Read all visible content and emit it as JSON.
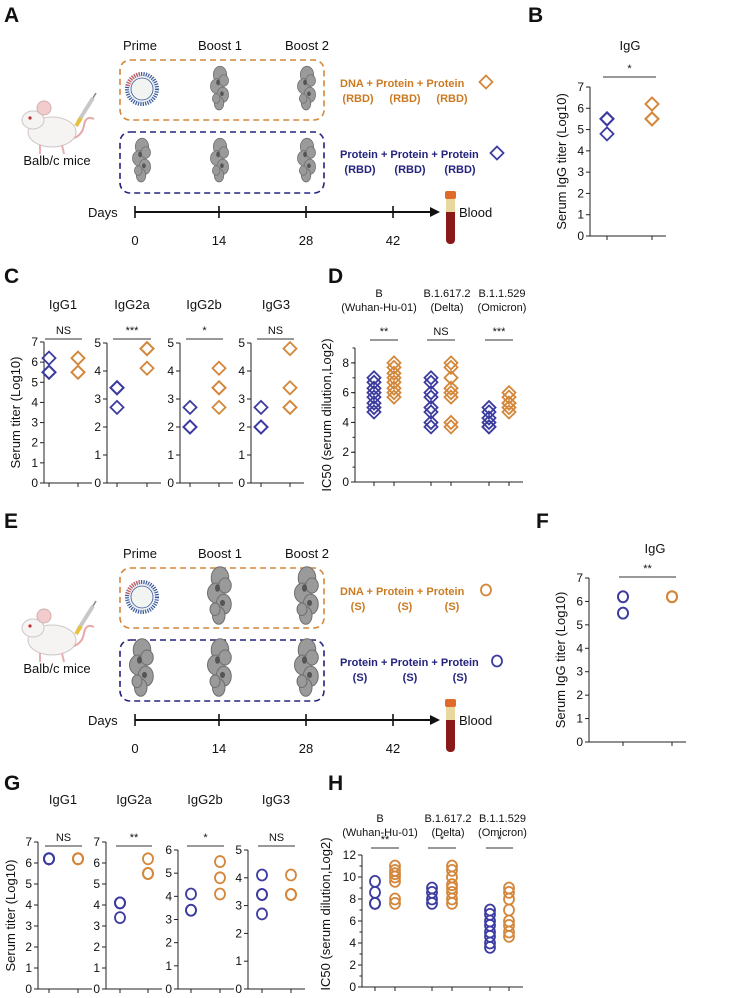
{
  "panel_labels": {
    "A": "A",
    "B": "B",
    "C": "C",
    "D": "D",
    "E": "E",
    "F": "F",
    "G": "G",
    "H": "H"
  },
  "colors": {
    "protein_group": "#3c3ca0",
    "dna_group": "#d4873a",
    "orange_box": "#d4873a",
    "blue_box": "#23237e"
  },
  "schematic_A": {
    "prime": "Prime",
    "boost1": "Boost 1",
    "boost2": "Boost 2",
    "mouse_label": "Balb/c mice",
    "days_label": "Days",
    "days": [
      "0",
      "14",
      "28",
      "42"
    ],
    "blood": "Blood",
    "group1": {
      "line1": "DNA + Protein + Protein",
      "antigens": [
        "(RBD)",
        "(RBD)",
        "(RBD)"
      ],
      "marker": "diamond"
    },
    "group2": {
      "line1": "Protein + Protein + Protein",
      "antigens": [
        "(RBD)",
        "(RBD)",
        "(RBD)"
      ],
      "marker": "diamond"
    }
  },
  "schematic_E": {
    "prime": "Prime",
    "boost1": "Boost 1",
    "boost2": "Boost 2",
    "mouse_label": "Balb/c mice",
    "days_label": "Days",
    "days": [
      "0",
      "14",
      "28",
      "42"
    ],
    "blood": "Blood",
    "group1": {
      "line1": "DNA + Protein + Protein",
      "antigens": [
        "(S)",
        "(S)",
        "(S)"
      ],
      "marker": "circle"
    },
    "group2": {
      "line1": "Protein + Protein + Protein",
      "antigens": [
        "(S)",
        "(S)",
        "(S)"
      ],
      "marker": "circle"
    }
  },
  "chart_data": [
    {
      "panel": "B",
      "type": "scatter",
      "title": "IgG",
      "ylabel": "Serum IgG titer (Log10)",
      "ylim": [
        0,
        7
      ],
      "yticks": [
        "0",
        "1",
        "2",
        "3",
        "4",
        "5",
        "6",
        "7"
      ],
      "marker": "diamond",
      "groups": [
        {
          "label": [],
          "significance": "*",
          "protein": [
            5.5,
            5.5,
            5.5,
            5.5,
            4.8
          ],
          "dna": [
            6.2,
            5.5,
            5.5,
            5.5,
            6.2
          ]
        }
      ]
    },
    {
      "panel": "C",
      "type": "scatter",
      "title": "IgG1",
      "ylabel": "Serum titer (Log10)",
      "ylim": [
        0,
        7
      ],
      "yticks": [
        "0",
        "1",
        "2",
        "3",
        "4",
        "5",
        "6",
        "7"
      ],
      "marker": "diamond",
      "groups": [
        {
          "label": [],
          "significance": "NS",
          "protein": [
            6.2,
            5.5,
            5.5,
            5.5
          ],
          "dna": [
            6.2,
            5.5,
            5.5,
            6.2
          ]
        }
      ]
    },
    {
      "panel": "C",
      "type": "scatter",
      "title": "IgG2a",
      "ylabel": "",
      "ylim": [
        0,
        5
      ],
      "yticks": [
        "0",
        "1",
        "2",
        "3",
        "4",
        "5"
      ],
      "marker": "diamond",
      "groups": [
        {
          "label": [],
          "significance": "***",
          "protein": [
            3.4,
            3.4,
            2.7,
            3.4
          ],
          "dna": [
            4.8,
            4.8,
            4.1,
            4.8
          ]
        }
      ]
    },
    {
      "panel": "C",
      "type": "scatter",
      "title": "IgG2b",
      "ylabel": "",
      "ylim": [
        0,
        5
      ],
      "yticks": [
        "0",
        "1",
        "2",
        "3",
        "4",
        "5"
      ],
      "marker": "diamond",
      "groups": [
        {
          "label": [],
          "significance": "*",
          "protein": [
            2.7,
            2.0,
            2.0,
            2.0
          ],
          "dna": [
            4.1,
            3.4,
            3.4,
            2.7
          ]
        }
      ]
    },
    {
      "panel": "C",
      "type": "scatter",
      "title": "IgG3",
      "ylabel": "",
      "ylim": [
        0,
        5
      ],
      "yticks": [
        "0",
        "1",
        "2",
        "3",
        "4",
        "5"
      ],
      "marker": "diamond",
      "groups": [
        {
          "label": [],
          "significance": "NS",
          "protein": [
            2.7,
            2.0,
            2.0,
            2.0
          ],
          "dna": [
            4.8,
            3.4,
            2.7,
            2.7
          ]
        }
      ]
    },
    {
      "panel": "D",
      "type": "scatter",
      "title": "",
      "ylabel": "IC50 (serum dilution,Log2)",
      "ylim": [
        0,
        9
      ],
      "yticks": [
        "0",
        "2",
        "4",
        "6",
        "8"
      ],
      "ytick_values": [
        0,
        2,
        4,
        6,
        8
      ],
      "minor_step": 1,
      "marker": "diamond",
      "groups": [
        {
          "label": [
            "B",
            "(Wuhan-Hu-01)"
          ],
          "significance": "**",
          "protein": [
            4.7,
            5.0,
            5.3,
            5.7,
            6.0,
            6.3,
            6.7,
            7.0
          ],
          "dna": [
            5.7,
            6.0,
            6.3,
            6.7,
            7.0,
            7.3,
            7.7,
            8.0
          ]
        },
        {
          "label": [
            "B.1.617.2",
            "(Delta)"
          ],
          "significance": "NS",
          "protein": [
            3.7,
            4.0,
            4.7,
            5.0,
            5.7,
            6.0,
            6.7,
            7.0
          ],
          "dna": [
            3.7,
            4.0,
            5.7,
            6.0,
            6.3,
            7.0,
            7.7,
            8.0
          ]
        },
        {
          "label": [
            "B.1.1.529",
            "(Omicron)"
          ],
          "significance": "***",
          "protein": [
            3.7,
            3.7,
            4.0,
            4.3,
            4.7,
            5.0
          ],
          "dna": [
            4.7,
            5.0,
            5.3,
            5.3,
            5.7,
            6.0
          ]
        }
      ]
    },
    {
      "panel": "F",
      "type": "scatter",
      "title": "IgG",
      "ylabel": "Serum IgG titer (Log10)",
      "ylim": [
        0,
        7
      ],
      "yticks": [
        "0",
        "1",
        "2",
        "3",
        "4",
        "5",
        "6",
        "7"
      ],
      "marker": "circle",
      "groups": [
        {
          "label": [],
          "significance": "**",
          "protein": [
            6.2,
            6.2,
            5.5,
            5.5
          ],
          "dna": [
            6.2,
            6.2,
            6.2,
            6.2,
            6.2
          ]
        }
      ]
    },
    {
      "panel": "G",
      "type": "scatter",
      "title": "IgG1",
      "ylabel": "Serum titer (Log10)",
      "ylim": [
        0,
        7
      ],
      "yticks": [
        "0",
        "1",
        "2",
        "3",
        "4",
        "5",
        "6",
        "7"
      ],
      "marker": "circle",
      "groups": [
        {
          "label": [],
          "significance": "NS",
          "protein": [
            6.2,
            6.2,
            6.2,
            6.2,
            6.2
          ],
          "dna": [
            6.2,
            6.2,
            6.2,
            6.2,
            6.2
          ]
        }
      ]
    },
    {
      "panel": "G",
      "type": "scatter",
      "title": "IgG2a",
      "ylabel": "",
      "ylim": [
        0,
        7
      ],
      "yticks": [
        "0",
        "1",
        "2",
        "3",
        "4",
        "5",
        "6",
        "7"
      ],
      "marker": "circle",
      "groups": [
        {
          "label": [],
          "significance": "**",
          "protein": [
            4.1,
            4.1,
            4.1,
            3.4
          ],
          "dna": [
            6.2,
            5.5,
            5.5,
            5.5
          ]
        }
      ]
    },
    {
      "panel": "G",
      "type": "scatter",
      "title": "IgG2b",
      "ylabel": "",
      "ylim": [
        0,
        6
      ],
      "yticks": [
        "0",
        "1",
        "2",
        "3",
        "4",
        "5",
        "6"
      ],
      "marker": "circle",
      "groups": [
        {
          "label": [],
          "significance": "*",
          "protein": [
            4.1,
            3.4,
            3.4
          ],
          "dna": [
            5.5,
            4.8,
            4.1
          ]
        }
      ]
    },
    {
      "panel": "G",
      "type": "scatter",
      "title": "IgG3",
      "ylabel": "",
      "ylim": [
        0,
        5
      ],
      "yticks": [
        "0",
        "1",
        "2",
        "3",
        "4",
        "5"
      ],
      "marker": "circle",
      "groups": [
        {
          "label": [],
          "significance": "NS",
          "protein": [
            4.1,
            3.4,
            3.4,
            2.7
          ],
          "dna": [
            4.1,
            3.4,
            3.4,
            3.4
          ]
        }
      ]
    },
    {
      "panel": "H",
      "type": "scatter",
      "title": "",
      "ylabel": "IC50 (serum dilution,Log2)",
      "ylim": [
        0,
        12
      ],
      "yticks": [
        "0",
        "2",
        "4",
        "6",
        "8",
        "10",
        "12"
      ],
      "ytick_values": [
        0,
        2,
        4,
        6,
        8,
        10,
        12
      ],
      "minor_step": 1,
      "marker": "circle",
      "groups": [
        {
          "label": [
            "B",
            "(Wuhan-Hu-01)"
          ],
          "significance": "**",
          "protein": [
            7.6,
            8.6,
            9.6,
            7.6
          ],
          "dna": [
            7.6,
            8.0,
            9.6,
            10.0,
            10.3,
            10.6,
            11.0
          ]
        },
        {
          "label": [
            "B.1.617.2",
            "(Delta)"
          ],
          "significance": "*",
          "protein": [
            7.6,
            8.0,
            8.6,
            9.0
          ],
          "dna": [
            7.6,
            8.0,
            8.6,
            9.0,
            9.3,
            10.0,
            10.6,
            11.0
          ]
        },
        {
          "label": [
            "B.1.1.529",
            "(Omicron)"
          ],
          "significance": "*",
          "protein": [
            3.6,
            4.0,
            4.6,
            5.0,
            5.6,
            6.0,
            6.6,
            7.0
          ],
          "dna": [
            4.6,
            5.0,
            5.6,
            6.0,
            7.0,
            8.0,
            8.6,
            9.0
          ]
        }
      ]
    }
  ]
}
